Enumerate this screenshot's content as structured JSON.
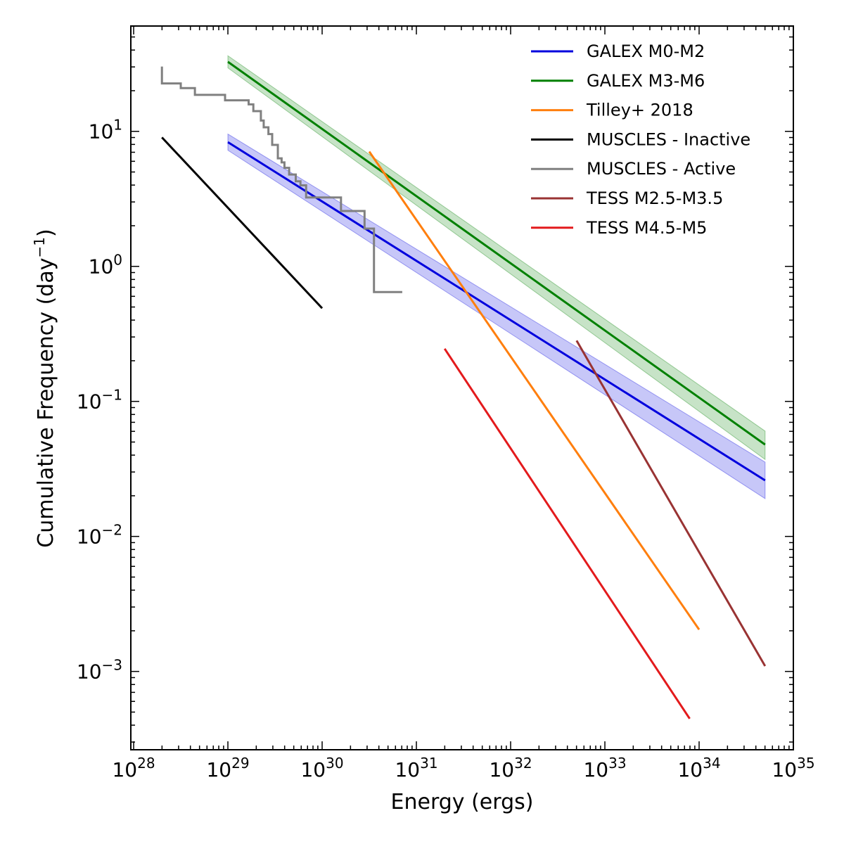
{
  "chart_data": {
    "type": "line",
    "title": "",
    "xlabel": "Energy (ergs)",
    "ylabel_main": "Cumulative Frequency (day",
    "ylabel_sup": "−1",
    "ylabel_end": ")",
    "xscale": "log",
    "yscale": "log",
    "xlim_log10": [
      27.97,
      35.0
    ],
    "ylim_log10": [
      -3.58,
      1.78
    ],
    "grid": false,
    "legend_position": "top-right",
    "x_ticks": [
      {
        "exp": 28,
        "base": "10",
        "sup": "28"
      },
      {
        "exp": 29,
        "base": "10",
        "sup": "29"
      },
      {
        "exp": 30,
        "base": "10",
        "sup": "30"
      },
      {
        "exp": 31,
        "base": "10",
        "sup": "31"
      },
      {
        "exp": 32,
        "base": "10",
        "sup": "32"
      },
      {
        "exp": 33,
        "base": "10",
        "sup": "33"
      },
      {
        "exp": 34,
        "base": "10",
        "sup": "34"
      },
      {
        "exp": 35,
        "base": "10",
        "sup": "35"
      }
    ],
    "y_ticks": [
      {
        "exp": 1,
        "base": "10",
        "sup": "1"
      },
      {
        "exp": 0,
        "base": "10",
        "sup": "0"
      },
      {
        "exp": -1,
        "base": "10",
        "sup": "−1"
      },
      {
        "exp": -2,
        "base": "10",
        "sup": "−2"
      },
      {
        "exp": -3,
        "base": "10",
        "sup": "−3"
      }
    ],
    "bands": [
      {
        "name": "GALEX M0-M2 band",
        "color": "#0000dd",
        "opacity": 0.22,
        "x_log10": [
          29.0,
          34.7
        ],
        "upper_log10": [
          0.98,
          -1.45
        ],
        "lower_log10": [
          0.86,
          -1.72
        ]
      },
      {
        "name": "GALEX M3-M6 band",
        "color": "#008000",
        "opacity": 0.22,
        "x_log10": [
          29.0,
          34.7
        ],
        "upper_log10": [
          1.56,
          -1.22
        ],
        "lower_log10": [
          1.47,
          -1.43
        ]
      }
    ],
    "series": [
      {
        "name": "GALEX M0-M2",
        "color": "#0000dd",
        "type": "line",
        "x_log10": [
          29.0,
          34.7
        ],
        "y_log10": [
          0.92,
          -1.585
        ]
      },
      {
        "name": "GALEX M3-M6",
        "color": "#008000",
        "type": "line",
        "x_log10": [
          29.0,
          34.7
        ],
        "y_log10": [
          1.515,
          -1.32
        ]
      },
      {
        "name": "Tilley+ 2018",
        "color": "#ff7f0e",
        "type": "line",
        "x_log10": [
          30.5,
          34.0
        ],
        "y_log10": [
          0.85,
          -2.69
        ]
      },
      {
        "name": "MUSCLES - Inactive",
        "color": "#000000",
        "type": "line",
        "x_log10": [
          28.3,
          30.0
        ],
        "y_log10": [
          0.955,
          -0.31
        ]
      },
      {
        "name": "MUSCLES - Active",
        "color": "#808080",
        "type": "step",
        "x_log10": [
          28.3,
          28.3,
          28.3,
          28.5,
          28.5,
          28.65,
          28.65,
          28.97,
          28.97,
          29.22,
          29.22,
          29.27,
          29.27,
          29.35,
          29.35,
          29.38,
          29.38,
          29.43,
          29.43,
          29.47,
          29.47,
          29.53,
          29.53,
          29.57,
          29.57,
          29.6,
          29.6,
          29.65,
          29.65,
          29.72,
          29.72,
          29.77,
          29.77,
          29.83,
          29.83,
          29.88,
          29.88,
          30.2,
          30.2,
          30.45,
          30.45,
          30.52,
          30.52,
          30.55,
          30.55,
          30.85
        ],
        "y_log10": [
          1.48,
          1.48,
          1.355,
          1.355,
          1.32,
          1.32,
          1.27,
          1.27,
          1.23,
          1.23,
          1.2,
          1.2,
          1.15,
          1.15,
          1.08,
          1.08,
          1.03,
          1.03,
          0.98,
          0.98,
          0.9,
          0.9,
          0.8,
          0.8,
          0.77,
          0.77,
          0.73,
          0.73,
          0.68,
          0.68,
          0.63,
          0.63,
          0.6,
          0.6,
          0.51,
          0.51,
          0.51,
          0.51,
          0.41,
          0.41,
          0.28,
          0.28,
          0.28,
          0.28,
          -0.19,
          -0.19
        ]
      },
      {
        "name": "TESS M2.5-M3.5",
        "color": "#993333",
        "type": "line",
        "x_log10": [
          32.7,
          34.7
        ],
        "y_log10": [
          -0.55,
          -2.96
        ]
      },
      {
        "name": "TESS M4.5-M5",
        "color": "#e31a1c",
        "type": "line",
        "x_log10": [
          31.3,
          33.9
        ],
        "y_log10": [
          -0.61,
          -3.35
        ]
      }
    ]
  }
}
